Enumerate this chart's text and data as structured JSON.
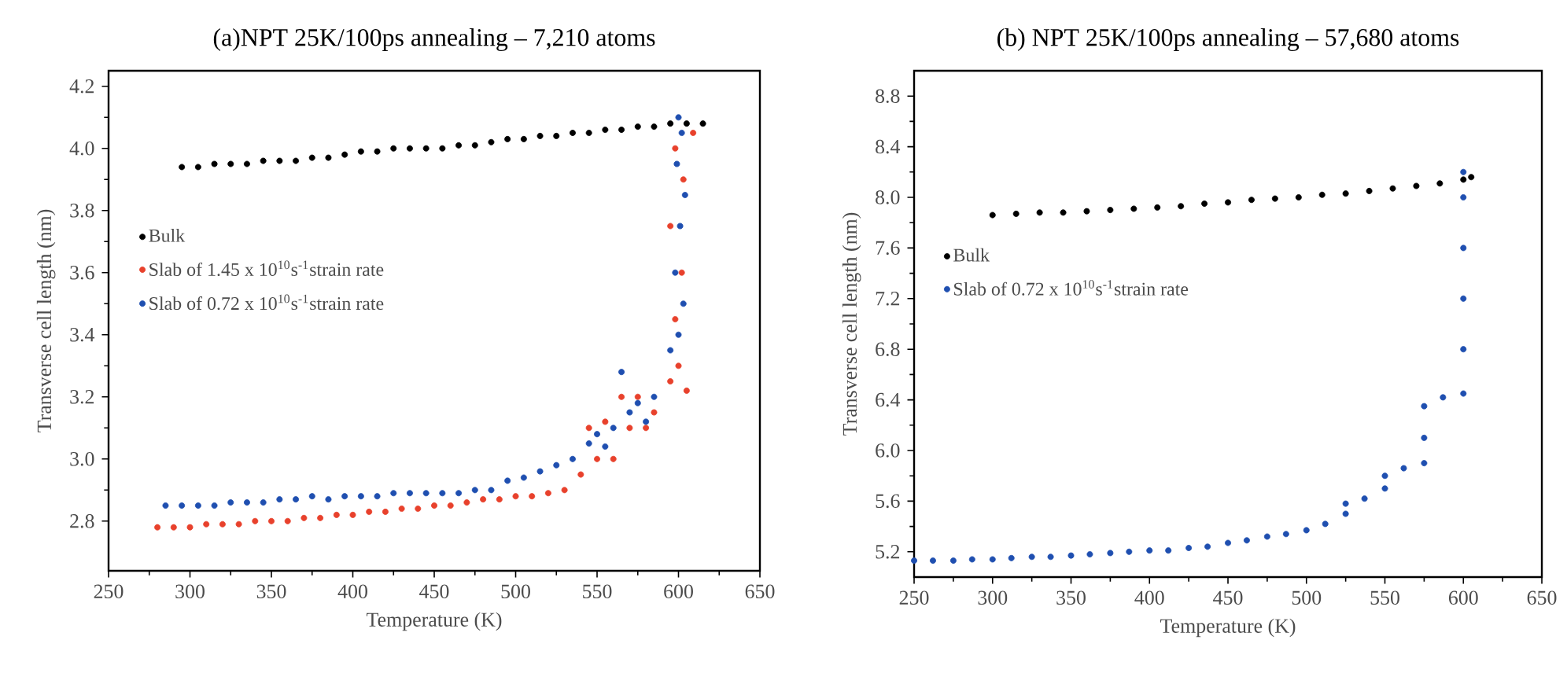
{
  "chart_data": [
    {
      "type": "scatter",
      "title": "(a)NPT 25K/100ps annealing – 7,210 atoms",
      "xlabel": "Temperature (K)",
      "ylabel": "Transverse cell length (nm)",
      "xlim": [
        250,
        650
      ],
      "ylim": [
        2.64,
        4.25
      ],
      "xticks": [
        250,
        300,
        350,
        400,
        450,
        500,
        550,
        600,
        650
      ],
      "yticks": [
        2.8,
        {
          "value": 3,
          "label": "3.0"
        },
        3.2,
        3.4,
        3.6,
        3.8,
        {
          "value": 4,
          "label": "4.0"
        },
        4.2
      ],
      "legend": "left",
      "marker": "circle",
      "series": [
        {
          "name": "Bulk",
          "color": "#000000",
          "x": [
            295,
            305,
            315,
            325,
            335,
            345,
            355,
            365,
            375,
            385,
            395,
            405,
            415,
            425,
            435,
            445,
            455,
            465,
            475,
            485,
            495,
            505,
            515,
            525,
            535,
            545,
            555,
            565,
            575,
            585,
            595,
            605,
            615
          ],
          "values": [
            3.94,
            3.94,
            3.95,
            3.95,
            3.95,
            3.96,
            3.96,
            3.96,
            3.97,
            3.97,
            3.98,
            3.99,
            3.99,
            4.0,
            4.0,
            4.0,
            4.0,
            4.01,
            4.01,
            4.02,
            4.03,
            4.03,
            4.04,
            4.04,
            4.05,
            4.05,
            4.06,
            4.06,
            4.07,
            4.07,
            4.08,
            4.08,
            4.08
          ]
        },
        {
          "name": "Slab of 1.45 x 10$^{10}$s$^{-1}$strain rate",
          "color": "#e8412c",
          "x": [
            280,
            290,
            300,
            310,
            320,
            330,
            340,
            350,
            360,
            370,
            380,
            390,
            400,
            410,
            420,
            430,
            440,
            450,
            460,
            470,
            480,
            490,
            500,
            510,
            520,
            530,
            540,
            545,
            550,
            555,
            560,
            565,
            570,
            575,
            580,
            585,
            595,
            600,
            605,
            598,
            602,
            595,
            603,
            598,
            609
          ],
          "values": [
            2.78,
            2.78,
            2.78,
            2.79,
            2.79,
            2.79,
            2.8,
            2.8,
            2.8,
            2.81,
            2.81,
            2.82,
            2.82,
            2.83,
            2.83,
            2.84,
            2.84,
            2.85,
            2.85,
            2.86,
            2.87,
            2.87,
            2.88,
            2.88,
            2.89,
            2.9,
            2.95,
            3.1,
            3.0,
            3.12,
            3.0,
            3.2,
            3.1,
            3.2,
            3.1,
            3.15,
            3.25,
            3.3,
            3.22,
            3.45,
            3.6,
            3.75,
            3.9,
            4.0,
            4.05
          ]
        },
        {
          "name": "Slab of 0.72 x 10$^{10}$s$^{-1}$strain rate",
          "color": "#1f4fb0",
          "x": [
            285,
            295,
            305,
            315,
            325,
            335,
            345,
            355,
            365,
            375,
            385,
            395,
            405,
            415,
            425,
            435,
            445,
            455,
            465,
            475,
            485,
            495,
            505,
            515,
            525,
            535,
            545,
            550,
            555,
            560,
            565,
            570,
            575,
            580,
            585,
            595,
            600,
            603,
            598,
            601,
            604,
            599,
            602,
            600
          ],
          "values": [
            2.85,
            2.85,
            2.85,
            2.85,
            2.86,
            2.86,
            2.86,
            2.87,
            2.87,
            2.88,
            2.87,
            2.88,
            2.88,
            2.88,
            2.89,
            2.89,
            2.89,
            2.89,
            2.89,
            2.9,
            2.9,
            2.93,
            2.94,
            2.96,
            2.98,
            3.0,
            3.05,
            3.08,
            3.04,
            3.1,
            3.28,
            3.15,
            3.18,
            3.12,
            3.2,
            3.35,
            3.4,
            3.5,
            3.6,
            3.75,
            3.85,
            3.95,
            4.05,
            4.1
          ]
        }
      ]
    },
    {
      "type": "scatter",
      "title": "(b) NPT 25K/100ps annealing – 57,680 atoms",
      "xlabel": "Temperature (K)",
      "ylabel": "Transverse cell length (nm)",
      "xlim": [
        250,
        650
      ],
      "ylim": [
        5.0,
        9.0
      ],
      "xticks": [
        250,
        300,
        350,
        400,
        450,
        500,
        550,
        600,
        650
      ],
      "yticks": [
        5.2,
        5.6,
        {
          "value": 6,
          "label": "6.0"
        },
        6.4,
        6.8,
        7.2,
        7.6,
        {
          "value": 8,
          "label": "8.0"
        },
        8.4,
        8.8
      ],
      "legend": "left",
      "marker": "circle",
      "series": [
        {
          "name": "Bulk",
          "color": "#000000",
          "x": [
            300,
            315,
            330,
            345,
            360,
            375,
            390,
            405,
            420,
            435,
            450,
            465,
            480,
            495,
            510,
            525,
            540,
            555,
            570,
            585,
            600,
            605
          ],
          "values": [
            7.86,
            7.87,
            7.88,
            7.88,
            7.89,
            7.9,
            7.91,
            7.92,
            7.93,
            7.95,
            7.96,
            7.98,
            7.99,
            8.0,
            8.02,
            8.03,
            8.05,
            8.07,
            8.09,
            8.11,
            8.14,
            8.16
          ]
        },
        {
          "name": "Slab of 0.72 x 10$^{10}$s$^{-1}$strain rate",
          "color": "#1f4fb0",
          "x": [
            250,
            262,
            275,
            287,
            300,
            312,
            325,
            337,
            350,
            362,
            375,
            387,
            400,
            412,
            425,
            437,
            450,
            462,
            475,
            487,
            500,
            512,
            525,
            525,
            537,
            550,
            550,
            562,
            575,
            575,
            575,
            587,
            600,
            600,
            600,
            600,
            600,
            600
          ],
          "values": [
            5.13,
            5.13,
            5.13,
            5.14,
            5.14,
            5.15,
            5.16,
            5.16,
            5.17,
            5.18,
            5.19,
            5.2,
            5.21,
            5.21,
            5.23,
            5.24,
            5.27,
            5.29,
            5.32,
            5.34,
            5.37,
            5.42,
            5.5,
            5.58,
            5.62,
            5.7,
            5.8,
            5.86,
            5.9,
            6.1,
            6.35,
            6.42,
            6.45,
            6.8,
            7.2,
            7.6,
            8.0,
            8.2
          ]
        }
      ]
    }
  ]
}
